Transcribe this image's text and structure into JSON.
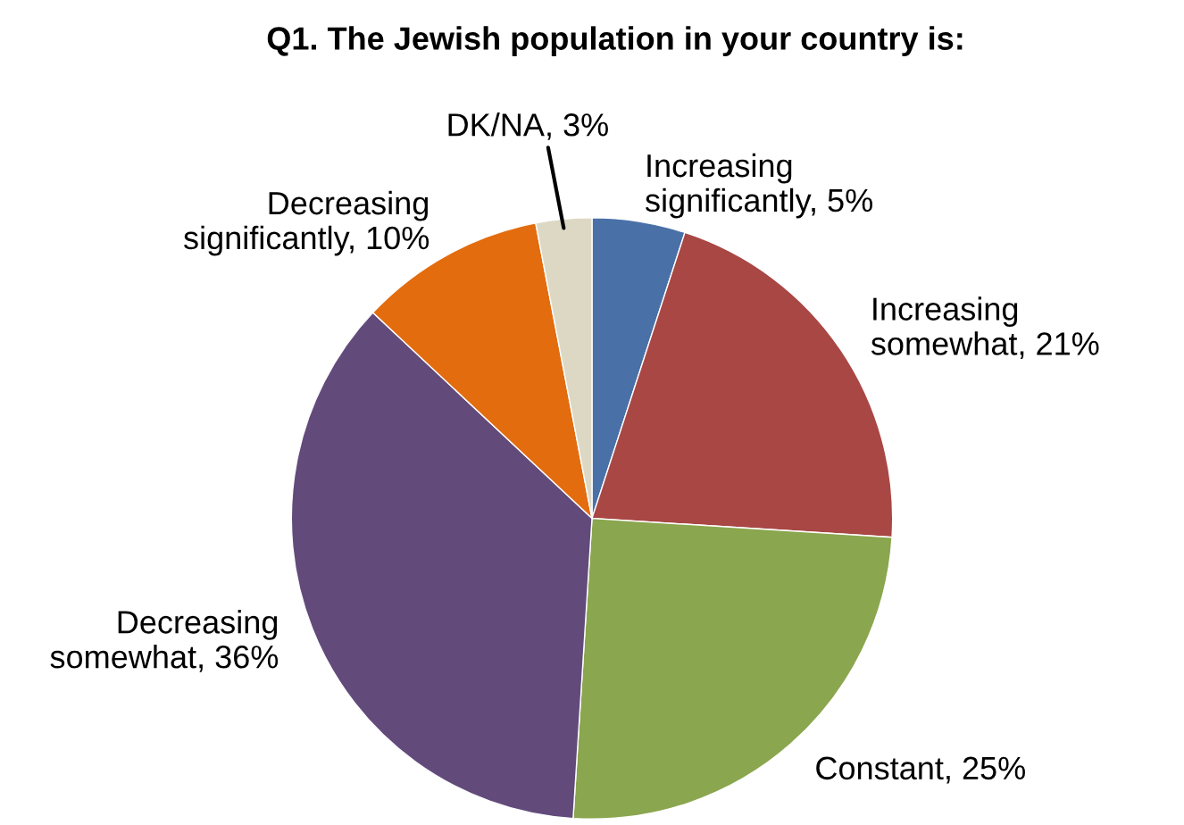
{
  "chart_data": {
    "type": "pie",
    "title": "Q1. The Jewish population in your country is:",
    "categories": [
      "Increasing significantly",
      "Increasing somewhat",
      "Constant",
      "Decreasing somewhat",
      "Decreasing significantly",
      "DK/NA"
    ],
    "values": [
      5,
      21,
      25,
      36,
      10,
      3
    ],
    "value_labels": [
      "5%",
      "21%",
      "25%",
      "36%",
      "10%",
      "3%"
    ],
    "colors": [
      "#4a70a8",
      "#a84744",
      "#8aa64e",
      "#624b7b",
      "#e36c0f",
      "#ddd8c4"
    ]
  }
}
